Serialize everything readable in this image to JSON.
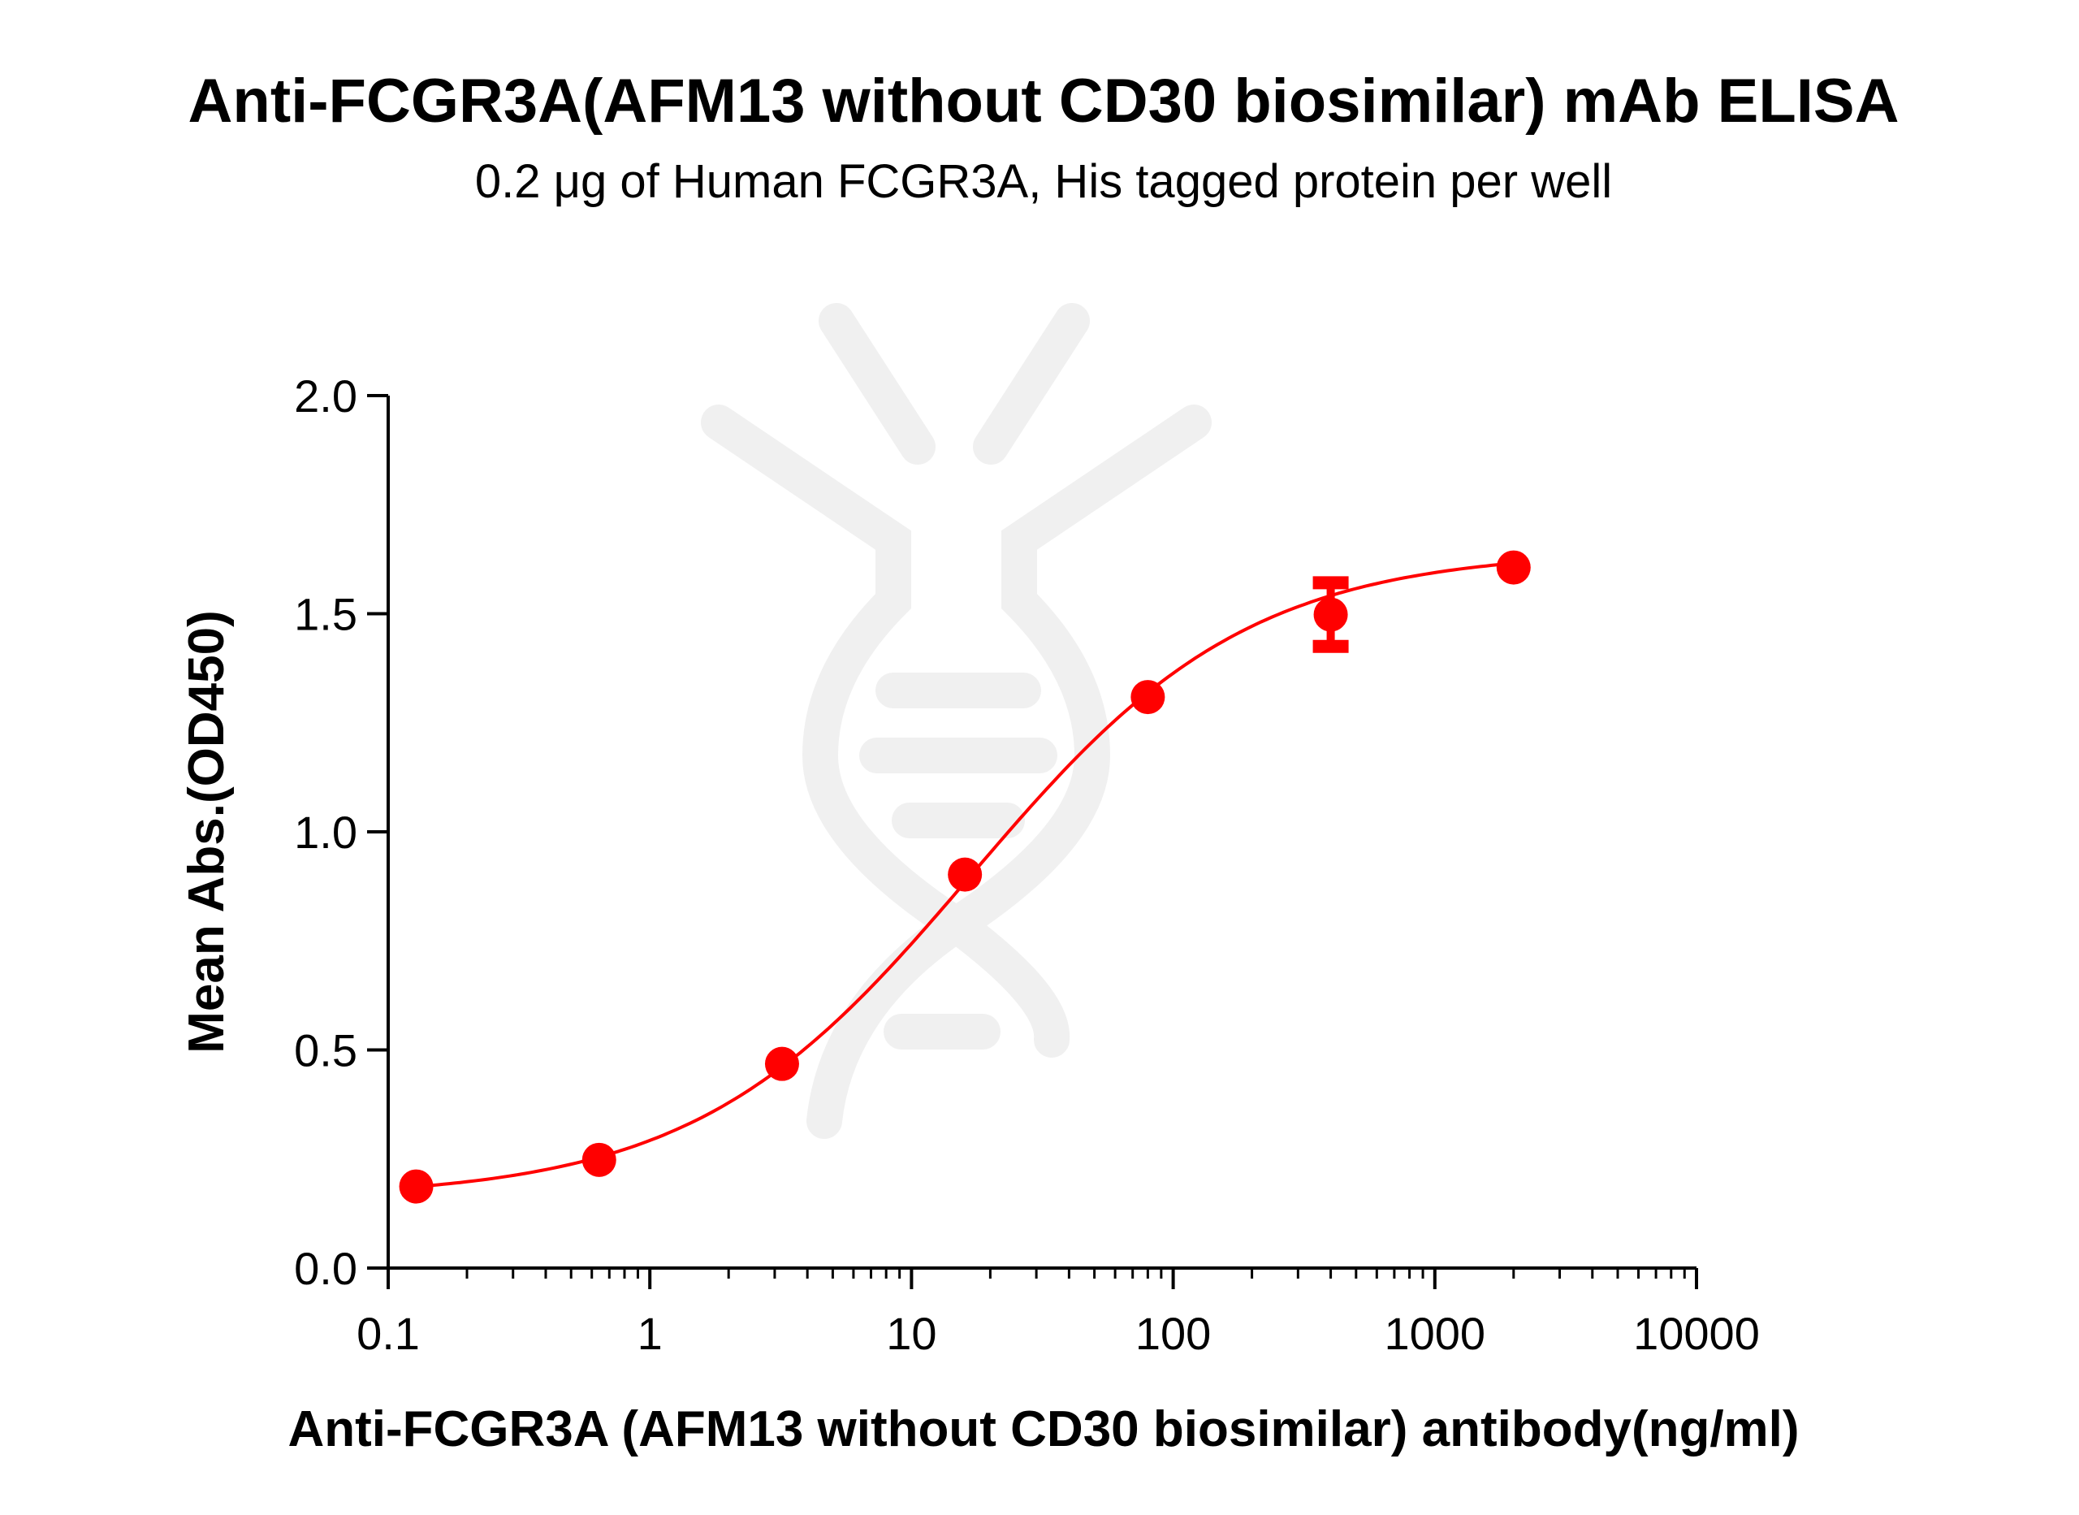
{
  "chart_data": {
    "type": "scatter",
    "title": "Anti-FCGR3A(AFM13 without CD30 biosimilar) mAb ELISA",
    "subtitle": "0.2 μg of Human FCGR3A, His tagged protein per well",
    "xlabel": "Anti-FCGR3A (AFM13 without CD30 biosimilar) antibody(ng/ml)",
    "ylabel": "Mean Abs.(OD450)",
    "xscale": "log",
    "xlim": [
      0.1,
      10000
    ],
    "ylim": [
      0,
      2.0
    ],
    "xticks": [
      "0.1",
      "1",
      "10",
      "100",
      "1000",
      "10000"
    ],
    "yticks": [
      "0.0",
      "0.5",
      "1.0",
      "1.5",
      "2.0"
    ],
    "grid": false,
    "color": "#ff0000",
    "fit": "sigmoidal 4PL curve",
    "series": [
      {
        "x": [
          0.128,
          0.64,
          3.2,
          16,
          80,
          400,
          2000
        ],
        "y": [
          0.187,
          0.248,
          0.468,
          0.902,
          1.309,
          1.498,
          1.606
        ],
        "error": [
          0,
          0,
          0,
          0,
          0,
          0.073,
          0
        ]
      }
    ]
  }
}
